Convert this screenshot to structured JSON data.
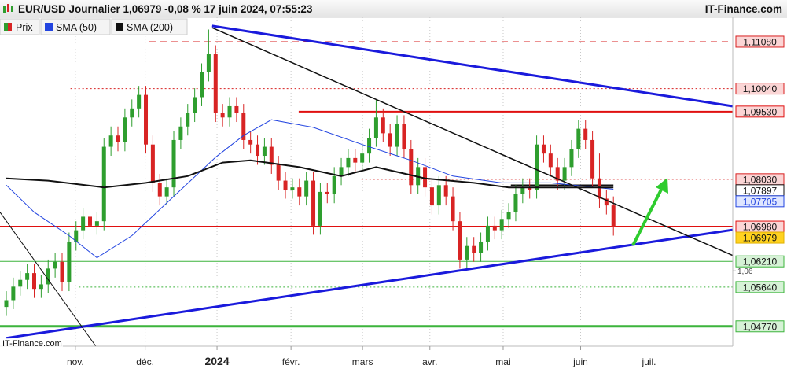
{
  "header": {
    "title": "EUR/USD Journalier 1,06979 -0,08 % 17 juin 2024, 07:55:23",
    "brand": "IT-Finance.com"
  },
  "chart_data": {
    "type": "candlestick",
    "watermark": "IT-Finance.com",
    "series_name": "Prix",
    "up_color": "#2e9e2e",
    "down_color": "#d82424",
    "open": [
      1.052,
      1.0535,
      1.0565,
      1.058,
      1.0595,
      1.056,
      1.057,
      1.0605,
      1.062,
      1.0575,
      1.0665,
      1.069,
      1.072,
      1.07,
      1.071,
      1.0875,
      1.09,
      1.0885,
      1.094,
      1.096,
      1.099,
      1.088,
      1.0795,
      1.0765,
      1.0785,
      1.089,
      1.092,
      1.095,
      1.0985,
      1.104,
      1.108,
      1.095,
      1.094,
      1.0965,
      1.095,
      1.089,
      1.088,
      1.0855,
      1.0875,
      1.0835,
      1.08,
      1.078,
      1.0785,
      1.0765,
      1.08,
      1.07,
      1.0775,
      1.077,
      1.081,
      1.083,
      1.085,
      1.084,
      1.086,
      1.0895,
      1.094,
      1.0905,
      1.0875,
      1.0925,
      1.087,
      1.079,
      1.083,
      1.0785,
      1.0745,
      1.079,
      1.0765,
      1.071,
      1.0625,
      1.0655,
      1.064,
      1.0665,
      1.07,
      1.069,
      1.0715,
      1.073,
      1.077,
      1.0785,
      1.078,
      1.088,
      1.086,
      1.083,
      1.08,
      1.083,
      1.087,
      1.0915,
      1.089,
      1.0805,
      1.076,
      1.0745
    ],
    "high": [
      1.0555,
      1.0585,
      1.06,
      1.0615,
      1.0615,
      1.059,
      1.0625,
      1.064,
      1.064,
      1.0685,
      1.071,
      1.074,
      1.074,
      1.073,
      1.0895,
      1.092,
      1.092,
      1.096,
      1.098,
      1.101,
      1.101,
      1.09,
      1.0815,
      1.0805,
      1.091,
      1.094,
      1.097,
      1.1005,
      1.106,
      1.1135,
      1.11,
      1.097,
      1.0985,
      1.0985,
      1.097,
      1.091,
      1.09,
      1.0895,
      1.0895,
      1.0855,
      1.082,
      1.0805,
      1.0805,
      1.082,
      1.082,
      1.0795,
      1.0795,
      1.083,
      1.085,
      1.087,
      1.087,
      1.088,
      1.0915,
      1.098,
      1.096,
      1.0925,
      1.0945,
      1.0945,
      1.089,
      1.085,
      1.085,
      1.0805,
      1.081,
      1.081,
      1.0785,
      1.073,
      1.0675,
      1.0675,
      1.0685,
      1.072,
      1.072,
      1.0735,
      1.075,
      1.079,
      1.0805,
      1.0805,
      1.09,
      1.09,
      1.088,
      1.085,
      1.085,
      1.089,
      1.0935,
      1.0935,
      1.091,
      1.086,
      1.078,
      1.0765
    ],
    "low": [
      1.05,
      1.0515,
      1.0545,
      1.056,
      1.054,
      1.054,
      1.055,
      1.0585,
      1.0555,
      1.0555,
      1.0645,
      1.067,
      1.068,
      1.068,
      1.069,
      1.0855,
      1.0865,
      1.0865,
      1.092,
      1.094,
      1.086,
      1.0775,
      1.0745,
      1.0745,
      1.0765,
      1.087,
      1.09,
      1.093,
      1.0965,
      1.102,
      1.093,
      1.092,
      1.092,
      1.093,
      1.087,
      1.086,
      1.0835,
      1.0835,
      1.0815,
      1.078,
      1.076,
      1.076,
      1.0745,
      1.0745,
      1.068,
      1.068,
      1.075,
      1.075,
      1.079,
      1.081,
      1.082,
      1.082,
      1.084,
      1.0875,
      1.0885,
      1.0855,
      1.0855,
      1.085,
      1.077,
      1.077,
      1.0765,
      1.0725,
      1.0725,
      1.0745,
      1.069,
      1.0605,
      1.0605,
      1.062,
      1.062,
      1.0645,
      1.067,
      1.067,
      1.0695,
      1.071,
      1.075,
      1.076,
      1.076,
      1.084,
      1.081,
      1.078,
      1.078,
      1.081,
      1.085,
      1.087,
      1.0785,
      1.074,
      1.0725,
      1.0678
    ],
    "close": [
      1.0535,
      1.0565,
      1.058,
      1.0595,
      1.056,
      1.057,
      1.0605,
      1.062,
      1.0575,
      1.0665,
      1.069,
      1.072,
      1.07,
      1.071,
      1.0875,
      1.09,
      1.0885,
      1.094,
      1.096,
      1.099,
      1.088,
      1.0795,
      1.0765,
      1.0785,
      1.089,
      1.092,
      1.095,
      1.0985,
      1.104,
      1.108,
      1.095,
      1.094,
      1.0965,
      1.095,
      1.089,
      1.088,
      1.0855,
      1.0875,
      1.0835,
      1.08,
      1.078,
      1.0785,
      1.0765,
      1.08,
      1.07,
      1.0775,
      1.077,
      1.081,
      1.083,
      1.085,
      1.084,
      1.086,
      1.0895,
      1.094,
      1.0905,
      1.0875,
      1.0925,
      1.087,
      1.079,
      1.083,
      1.0785,
      1.0745,
      1.079,
      1.0765,
      1.071,
      1.0625,
      1.0655,
      1.064,
      1.0665,
      1.07,
      1.069,
      1.0715,
      1.073,
      1.077,
      1.0785,
      1.078,
      1.088,
      1.086,
      1.083,
      1.08,
      1.083,
      1.087,
      1.0915,
      1.089,
      1.0805,
      1.076,
      1.0745,
      1.06979
    ],
    "series": [
      {
        "name": "SMA (50)",
        "color": "#2244e0",
        "x": [
          0,
          4,
          9,
          13,
          18,
          24,
          30,
          34,
          38,
          44,
          51,
          58,
          64,
          71,
          78,
          87
        ],
        "values": [
          1.079,
          1.073,
          1.0678,
          1.0629,
          1.0678,
          1.0765,
          1.0852,
          1.09,
          1.0935,
          1.0918,
          1.088,
          1.0845,
          1.081,
          1.0795,
          1.0795,
          1.0781
        ]
      },
      {
        "name": "SMA (200)",
        "color": "#111111",
        "x": [
          0,
          6,
          14,
          20,
          26,
          31,
          35,
          42,
          48,
          53,
          60,
          67,
          72,
          78,
          87
        ],
        "values": [
          1.0805,
          1.08,
          1.0785,
          1.0795,
          1.081,
          1.084,
          1.0845,
          1.083,
          1.081,
          1.083,
          1.0805,
          1.0795,
          1.0785,
          1.0785,
          1.0785
        ]
      }
    ],
    "trendlines": [
      {
        "color": "#1a1adc",
        "width": 3,
        "x": [
          29.5,
          104.1
        ],
        "values": [
          1.1143,
          1.0965
        ]
      },
      {
        "color": "#1a1adc",
        "width": 3,
        "x": [
          0,
          104.1
        ],
        "values": [
          1.0451,
          1.0691
        ]
      },
      {
        "color": "#111111",
        "width": 1.5,
        "x": [
          29.5,
          104.1
        ],
        "values": [
          1.1139,
          1.0634
        ]
      },
      {
        "color": "#111111",
        "width": 1,
        "x": [
          -0.9,
          13.2
        ],
        "values": [
          1.073,
          1.0425
        ]
      }
    ],
    "levels": [
      {
        "value": 1.1108,
        "label": "1,11080",
        "color": "#d82020",
        "style": "dash",
        "start": 20.5,
        "label_bg": "#fbd5d5",
        "label_color": "#111111"
      },
      {
        "value": 1.1004,
        "label": "1,10040",
        "color": "#d82020",
        "style": "dot",
        "start": 9.2,
        "label_bg": "#fbd5d5",
        "label_color": "#111111"
      },
      {
        "value": 1.0953,
        "label": "1,09530",
        "color": "#e01010",
        "style": "solid2",
        "start": 41.9,
        "label_bg": "#fbd5d5",
        "label_color": "#111111"
      },
      {
        "value": 1.0803,
        "label": "1,08030",
        "color": "#d82020",
        "style": "dot",
        "start": 50.9,
        "label_bg": "#fbd5d5",
        "label_color": "#111111"
      },
      {
        "value": 1.07897,
        "label": "1,07897",
        "color": "#111111",
        "style": "solid2",
        "start": 72.3,
        "end": 87,
        "label_bg": "#ffffff",
        "label_color": "#111111"
      },
      {
        "value": 1.07705,
        "label": "1,07705",
        "color": "#2244e0",
        "style": "none",
        "label_bg": "#dfe6ff",
        "label_color": "#2244e0"
      },
      {
        "value": 1.0698,
        "label": "1,06980",
        "color": "#e01010",
        "style": "solid2",
        "label_bg": "#fbd5d5",
        "label_color": "#111111"
      },
      {
        "value": 1.06979,
        "label": "1,06979",
        "color": "#e0b000",
        "style": "none",
        "label_bg": "#ffd21f",
        "label_color": "#111111"
      },
      {
        "value": 1.0621,
        "label": "1,06210",
        "color": "#3cb43c",
        "style": "solid1",
        "label_bg": "#d6f2d6",
        "label_color": "#111111"
      },
      {
        "value": 1.0564,
        "label": "1,05640",
        "color": "#3cb43c",
        "style": "dot",
        "start": 10.4,
        "label_bg": "#d6f2d6",
        "label_color": "#111111"
      },
      {
        "value": 1.0477,
        "label": "1,04770",
        "color": "#3cb43c",
        "style": "solid3",
        "label_bg": "#d6f2d6",
        "label_color": "#111111"
      }
    ],
    "xlim": [
      -0.9,
      104.1
    ],
    "ylim": [
      1.0433,
      1.1162
    ],
    "xticks": [
      {
        "value": 9.9,
        "label": "nov."
      },
      {
        "value": 19.9,
        "label": "déc."
      },
      {
        "value": 30.2,
        "label": "2024"
      },
      {
        "value": 40.8,
        "label": "févr."
      },
      {
        "value": 51.05,
        "label": "mars"
      },
      {
        "value": 60.7,
        "label": "avr."
      },
      {
        "value": 71.2,
        "label": "mai"
      },
      {
        "value": 82.3,
        "label": "juin"
      },
      {
        "value": 92.1,
        "label": "juil."
      }
    ],
    "yticks": [
      {
        "value": 1.06,
        "label": "1,06"
      }
    ]
  }
}
